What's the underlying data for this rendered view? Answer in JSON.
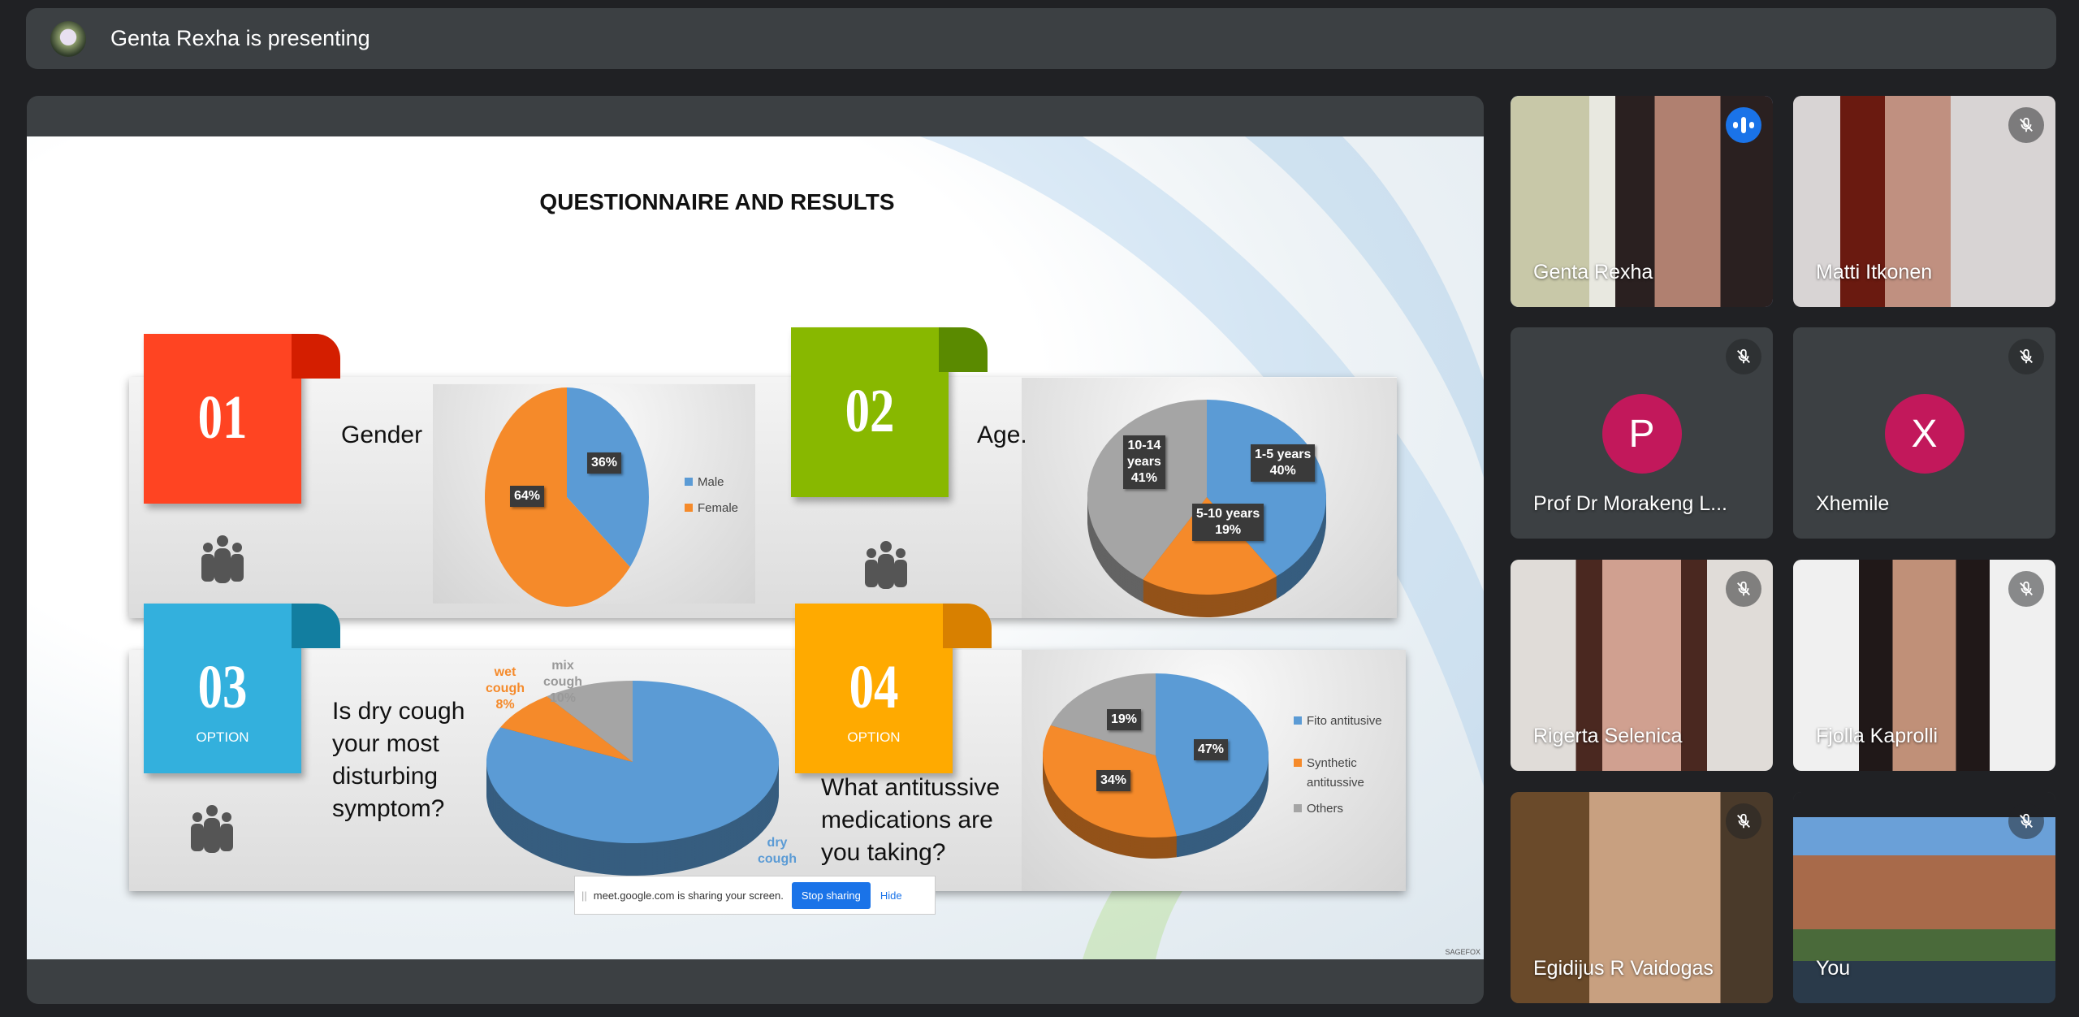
{
  "header": {
    "presenting_text": "Genta Rexha is presenting",
    "presenter_avatar_icon": "passion-flower-avatar"
  },
  "slide": {
    "title": "QUESTIONNAIRE AND RESULTS",
    "watermark": "SAGEFOX",
    "items": [
      {
        "number": "01",
        "option": "",
        "question": "Gender",
        "color": "#ff4422"
      },
      {
        "number": "02",
        "option": "",
        "question": "Age.",
        "color": "#88b800"
      },
      {
        "number": "03",
        "option": "OPTION",
        "question_lines": [
          "Is dry cough",
          "your most",
          "disturbing",
          "symptom?"
        ],
        "color": "#33b0dd"
      },
      {
        "number": "04",
        "option": "OPTION",
        "question_lines": [
          "What antitussive",
          "medications are",
          "you taking?"
        ],
        "color": "#ffaa00"
      }
    ]
  },
  "chart_data": [
    {
      "type": "pie",
      "categories": [
        "Male",
        "Female"
      ],
      "values": [
        36,
        64
      ],
      "labels": [
        "36%",
        "64%"
      ],
      "legend": [
        "Male",
        "Female"
      ],
      "legend_position": "right",
      "colors": [
        "#5b9bd5",
        "#f58a2a"
      ]
    },
    {
      "type": "pie",
      "categories": [
        "1-5 years",
        "5-10 years",
        "10-14 years"
      ],
      "values": [
        40,
        19,
        41
      ],
      "labels": [
        [
          "1-5 years",
          "40%"
        ],
        [
          "5-10 years",
          "19%"
        ],
        [
          "10-14",
          "years",
          "41%"
        ]
      ],
      "style": "3d",
      "colors": [
        "#5b9bd5",
        "#f58a2a",
        "#a5a5a5"
      ]
    },
    {
      "type": "pie",
      "categories": [
        "dry cough",
        "wet cough",
        "mix cough"
      ],
      "values": [
        82,
        8,
        10
      ],
      "labels": [
        [
          "dry",
          "cough"
        ],
        [
          "wet",
          "cough",
          "8%"
        ],
        [
          "mix",
          "cough",
          "10%"
        ]
      ],
      "style": "3d",
      "colors": [
        "#5b9bd5",
        "#f58a2a",
        "#a5a5a5"
      ]
    },
    {
      "type": "pie",
      "categories": [
        "Fito antitusive",
        "Synthetic antitussive",
        "Others"
      ],
      "values": [
        47,
        34,
        19
      ],
      "labels": [
        "47%",
        "34%",
        "19%"
      ],
      "legend": [
        "Fito antitusive",
        "Synthetic",
        "antitussive",
        "Others"
      ],
      "legend_position": "right",
      "style": "3d",
      "colors": [
        "#5b9bd5",
        "#f58a2a",
        "#a5a5a5"
      ]
    }
  ],
  "share_bar": {
    "message": "meet.google.com is sharing your screen.",
    "stop_label": "Stop sharing",
    "hide_label": "Hide"
  },
  "participants": [
    {
      "name": "Genta Rexha",
      "state": "speaking",
      "highlight": "#8ab4f8"
    },
    {
      "name": "Matti Itkonen",
      "state": "muted"
    },
    {
      "name": "Prof Dr Morakeng L...",
      "state": "muted",
      "initial": "P",
      "avatar_color": "#c2185b"
    },
    {
      "name": "Xhemile",
      "state": "muted",
      "initial": "X",
      "avatar_color": "#c2185b"
    },
    {
      "name": "Rigerta Selenica",
      "state": "muted"
    },
    {
      "name": "Fjolla Kaprolli",
      "state": "muted"
    },
    {
      "name": "Egidijus R Vaidogas",
      "state": "muted"
    },
    {
      "name": "You",
      "state": "muted"
    }
  ]
}
